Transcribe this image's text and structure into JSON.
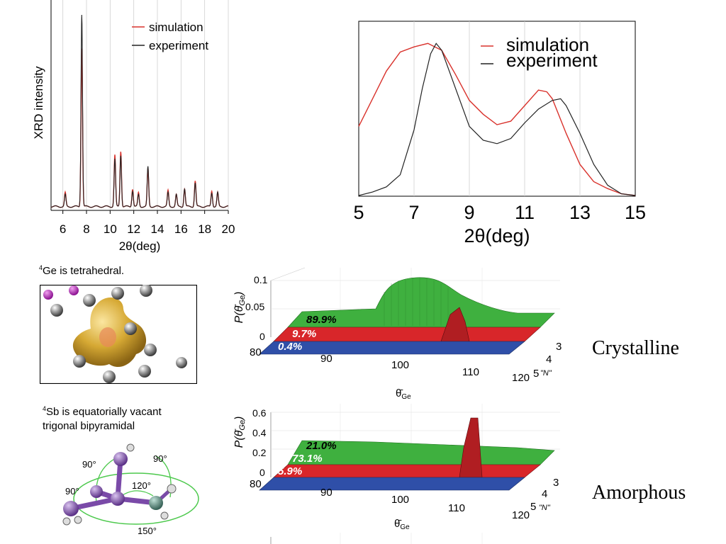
{
  "chart_data": [
    {
      "type": "line",
      "ylabel": "XRD intensity",
      "xlabel": "2θ(deg)",
      "xlim": [
        5,
        20
      ],
      "xticks": [
        "6",
        "8",
        "10",
        "12",
        "14",
        "16",
        "18",
        "20"
      ],
      "grid": "vertical",
      "legend_position": "top-right",
      "series": [
        {
          "name": "simulation",
          "color": "#d9322c"
        },
        {
          "name": "experiment",
          "color": "#222222"
        }
      ],
      "peaks": [
        {
          "x": 6.2,
          "sim": 0.07,
          "exp": 0.06
        },
        {
          "x": 7.6,
          "sim": 0.8,
          "exp": 0.97
        },
        {
          "x": 10.4,
          "sim": 0.26,
          "exp": 0.24
        },
        {
          "x": 10.9,
          "sim": 0.28,
          "exp": 0.26
        },
        {
          "x": 11.9,
          "sim": 0.09,
          "exp": 0.08
        },
        {
          "x": 12.4,
          "sim": 0.07,
          "exp": 0.06
        },
        {
          "x": 13.2,
          "sim": 0.19,
          "exp": 0.2
        },
        {
          "x": 14.9,
          "sim": 0.08,
          "exp": 0.07
        },
        {
          "x": 15.6,
          "sim": 0.06,
          "exp": 0.06
        },
        {
          "x": 16.3,
          "sim": 0.09,
          "exp": 0.09
        },
        {
          "x": 17.2,
          "sim": 0.13,
          "exp": 0.12
        },
        {
          "x": 18.6,
          "sim": 0.08,
          "exp": 0.07
        },
        {
          "x": 19.1,
          "sim": 0.07,
          "exp": 0.07
        }
      ]
    },
    {
      "type": "line",
      "xlabel": "2θ(deg)",
      "xlim": [
        5,
        15
      ],
      "ylim": [
        0,
        1
      ],
      "xticks": [
        "5",
        "7",
        "9",
        "11",
        "13",
        "15"
      ],
      "grid": "vertical",
      "legend_position": "top-right",
      "series": [
        {
          "name": "simulation",
          "color": "#d9322c",
          "x": [
            5.0,
            5.5,
            6.0,
            6.5,
            7.0,
            7.5,
            8.0,
            8.5,
            9.0,
            9.5,
            10.0,
            10.5,
            11.0,
            11.5,
            11.8,
            12.0,
            12.5,
            13.0,
            13.5,
            14.0,
            14.5,
            15.0
          ],
          "y": [
            0.4,
            0.56,
            0.72,
            0.83,
            0.86,
            0.88,
            0.84,
            0.7,
            0.55,
            0.47,
            0.41,
            0.43,
            0.52,
            0.61,
            0.6,
            0.56,
            0.36,
            0.18,
            0.08,
            0.04,
            0.01,
            0.0
          ]
        },
        {
          "name": "experiment",
          "color": "#222222",
          "x": [
            5.0,
            5.5,
            6.0,
            6.5,
            7.0,
            7.3,
            7.6,
            7.8,
            8.0,
            8.5,
            9.0,
            9.5,
            10.0,
            10.5,
            11.0,
            11.5,
            12.0,
            12.3,
            12.5,
            13.0,
            13.5,
            14.0,
            14.5,
            15.0
          ],
          "y": [
            0.0,
            0.02,
            0.05,
            0.12,
            0.38,
            0.62,
            0.82,
            0.88,
            0.84,
            0.62,
            0.4,
            0.32,
            0.3,
            0.33,
            0.42,
            0.5,
            0.55,
            0.56,
            0.52,
            0.36,
            0.18,
            0.06,
            0.01,
            0.0
          ]
        }
      ]
    },
    {
      "type": "area",
      "title": "Crystalline",
      "ylabel": "P(θ̄Ge)",
      "xlabel": "θ̄Ge",
      "zlabel": "\"N\"",
      "xlim": [
        80,
        120
      ],
      "xticks": [
        "80",
        "90",
        "100",
        "110",
        "120"
      ],
      "yticks": [
        "0",
        "0.05",
        "0.1"
      ],
      "nticks": [
        "3",
        "4",
        "5"
      ],
      "series": [
        {
          "name": "3",
          "percent": "89.9%",
          "color": "#3fb03f"
        },
        {
          "name": "4",
          "percent": "9.7%",
          "color": "#d8262a"
        },
        {
          "name": "5",
          "percent": "0.4%",
          "color": "#2f4fa8"
        }
      ]
    },
    {
      "type": "area",
      "title": "Amorphous",
      "ylabel": "P(θ̄Ge)",
      "xlabel": "θ̄Ge",
      "zlabel": "\"N\"",
      "xlim": [
        80,
        120
      ],
      "xticks": [
        "80",
        "90",
        "100",
        "110",
        "120"
      ],
      "yticks": [
        "0",
        "0.2",
        "0.4",
        "0.6"
      ],
      "nticks": [
        "3",
        "4",
        "5"
      ],
      "series": [
        {
          "name": "3",
          "percent": "21.0%",
          "color": "#3fb03f"
        },
        {
          "name": "4",
          "percent": "73.1%",
          "color": "#d8262a"
        },
        {
          "name": "5",
          "percent": "5.9%",
          "color": "#2f4fa8"
        }
      ]
    }
  ],
  "annotations": {
    "ge_caption_sup": "4",
    "ge_caption": "Ge is tetrahedral.",
    "sb_caption_sup": "4",
    "sb_caption_line1": "Sb is equatorially vacant",
    "sb_caption_line2": "trigonal bipyramidal",
    "angles": [
      "90°",
      "90°",
      "90°",
      "120°",
      "150°"
    ]
  }
}
